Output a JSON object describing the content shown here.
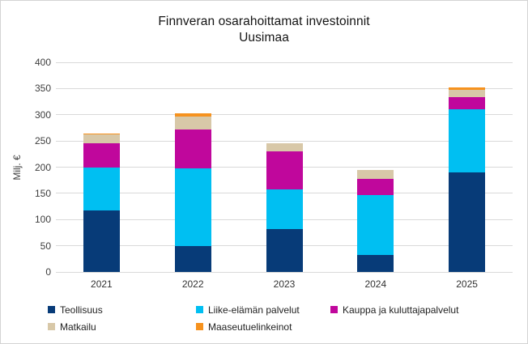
{
  "title": {
    "line1": "Finnveran osarahoittamat investoinnit",
    "line2": "Uusimaa"
  },
  "chart_data": {
    "type": "bar",
    "stacked": true,
    "title": "Finnveran osarahoittamat investoinnit Uusimaa",
    "xlabel": "",
    "ylabel": "Milj. €",
    "ylim": [
      0,
      400
    ],
    "ytick_step": 50,
    "ytick_labels": [
      "0",
      "50",
      "100",
      "150",
      "200",
      "250",
      "300",
      "350",
      "400"
    ],
    "grid": true,
    "legend_position": "bottom",
    "categories": [
      "2021",
      "2022",
      "2023",
      "2024",
      "2025"
    ],
    "series": [
      {
        "name": "Teollisuus",
        "color": "#073b78",
        "values": [
          117,
          50,
          82,
          33,
          190
        ]
      },
      {
        "name": "Liike-elämän palvelut",
        "color": "#00bff2",
        "values": [
          83,
          148,
          76,
          114,
          120
        ]
      },
      {
        "name": "Kauppa ja kuluttajapalvelut",
        "color": "#c0079c",
        "values": [
          45,
          74,
          72,
          30,
          23
        ]
      },
      {
        "name": "Matkailu",
        "color": "#d8c8a8",
        "values": [
          17,
          24,
          16,
          17,
          15
        ]
      },
      {
        "name": "Maaseutuelinkeinot",
        "color": "#f6921e",
        "values": [
          2,
          6,
          0,
          0,
          4
        ]
      }
    ],
    "totals": [
      264,
      302,
      246,
      194,
      352
    ]
  },
  "colors": {
    "grid": "#d9d9d9",
    "border": "#d4d4d4",
    "title_text": "#141414",
    "axis_text": "#3d3d3d"
  }
}
